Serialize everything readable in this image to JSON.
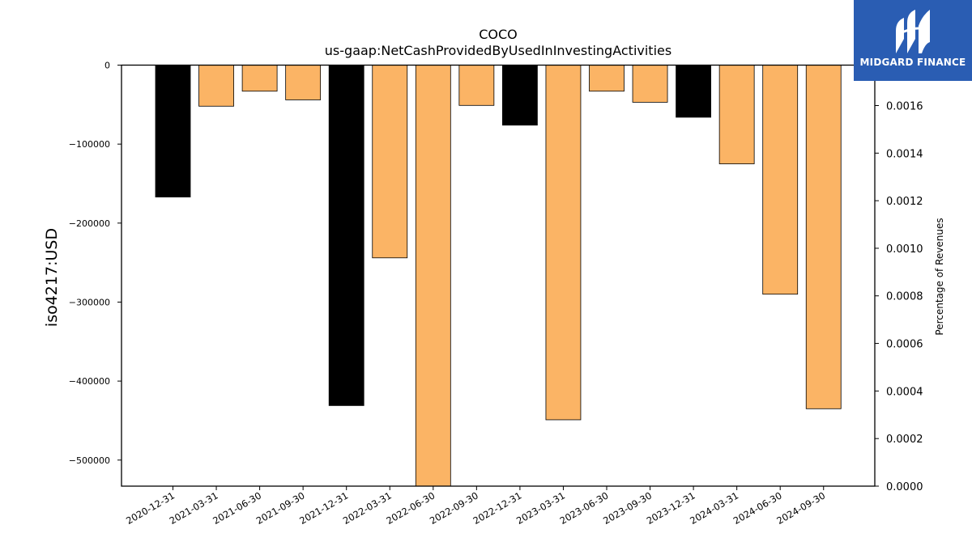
{
  "chart_data": {
    "type": "bar",
    "title": "COCO",
    "subtitle": "us-gaap:NetCashProvidedByUsedInInvestingActivities",
    "ylabel": "iso4217:USD",
    "ylabel_right": "Percentage of Revenues",
    "categories": [
      "2020-12-31",
      "2021-03-31",
      "2021-06-30",
      "2021-09-30",
      "2021-12-31",
      "2022-03-31",
      "2022-06-30",
      "2022-09-30",
      "2022-12-31",
      "2023-03-31",
      "2023-06-30",
      "2023-09-30",
      "2023-12-31",
      "2024-03-31",
      "2024-06-30",
      "2024-09-30"
    ],
    "values": [
      -167000,
      -52000,
      -33000,
      -44000,
      -431000,
      -244000,
      -533000,
      -51000,
      -76000,
      -449000,
      -33000,
      -47000,
      -66000,
      -125000,
      -290000,
      -435000
    ],
    "bar_colors": [
      "#000000",
      "#fbb465",
      "#fbb465",
      "#fbb465",
      "#000000",
      "#fbb465",
      "#fbb465",
      "#fbb465",
      "#000000",
      "#fbb465",
      "#fbb465",
      "#fbb465",
      "#000000",
      "#fbb465",
      "#fbb465",
      "#fbb465"
    ],
    "ylim": [
      -533000,
      0
    ],
    "yticks": [
      0,
      -100000,
      -200000,
      -300000,
      -400000,
      -500000
    ],
    "ytick_labels": [
      "0",
      "−100000",
      "−200000",
      "−300000",
      "−400000",
      "−500000"
    ],
    "y2lim": [
      0,
      0.00177
    ],
    "y2ticks": [
      0,
      0.0002,
      0.0004,
      0.0006,
      0.0008,
      0.001,
      0.0012,
      0.0014,
      0.0016
    ],
    "y2tick_labels": [
      "0.0000",
      "0.0002",
      "0.0004",
      "0.0006",
      "0.0008",
      "0.0010",
      "0.0012",
      "0.0014",
      "0.0016"
    ],
    "grid": false,
    "legend": "none"
  },
  "logo": {
    "text": "MIDGARD FINANCE",
    "background": "#2a5db3"
  }
}
